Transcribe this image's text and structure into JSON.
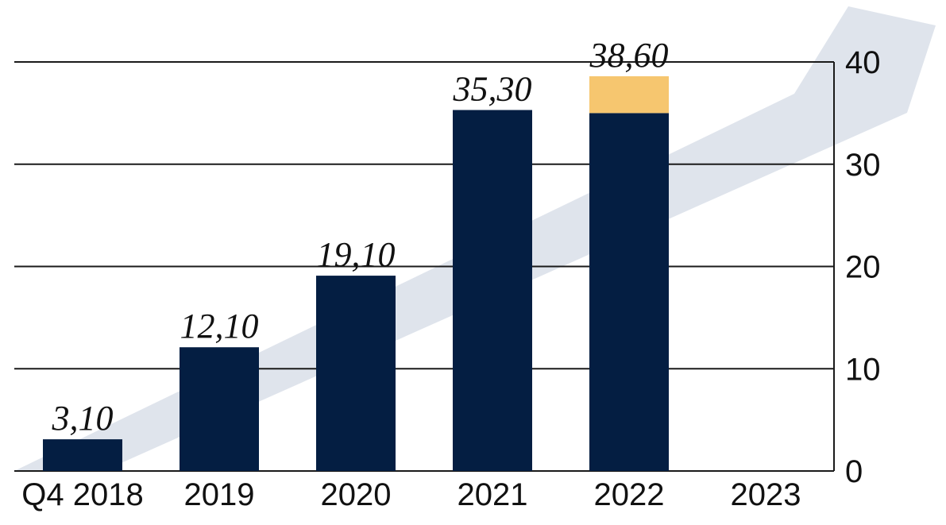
{
  "chart_data": {
    "type": "bar",
    "stacked": true,
    "categories": [
      "Q4 2018",
      "2019",
      "2020",
      "2021",
      "2022",
      "2023"
    ],
    "series": [
      {
        "values": [
          3.1,
          12.1,
          19.1,
          35.3,
          35.0,
          null
        ],
        "color": "#041e42"
      },
      {
        "values": [
          0,
          0,
          0,
          0,
          3.6,
          null
        ],
        "color": "#f6c66f"
      }
    ],
    "totals": [
      3.1,
      12.1,
      19.1,
      35.3,
      38.6,
      null
    ],
    "data_labels": [
      "3,10",
      "12,10",
      "19,10",
      "35,30",
      "38,60",
      ""
    ],
    "y_ticks": [
      "0",
      "10",
      "20",
      "30",
      "40"
    ],
    "ylim": [
      0,
      40
    ],
    "y_axis_side": "right",
    "grid": true,
    "background_arrow": {
      "color": "#dfe4ec",
      "direction": "rising"
    },
    "title": "",
    "xlabel": "",
    "ylabel": ""
  }
}
